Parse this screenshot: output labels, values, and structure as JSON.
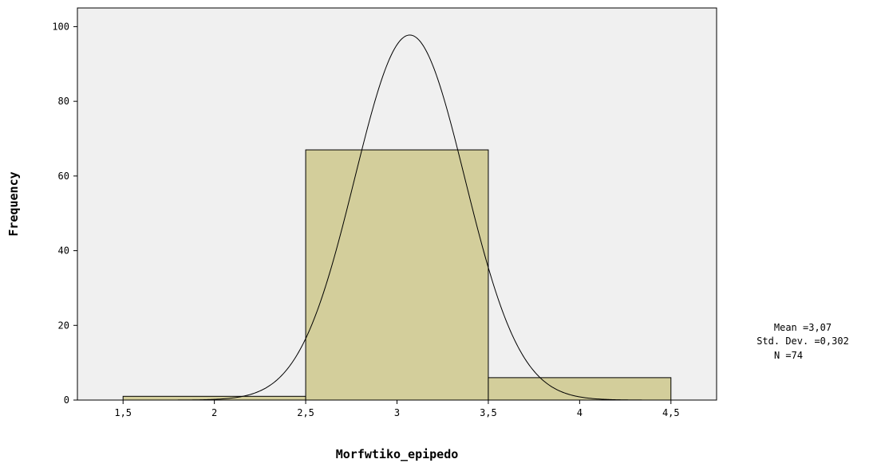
{
  "chart_data": {
    "type": "bar",
    "subtype": "histogram",
    "xlabel": "Morfwtiko_epipedo",
    "ylabel": "Frequency",
    "xlim": [
      1.25,
      4.75
    ],
    "ylim": [
      0,
      105
    ],
    "x_ticks": [
      {
        "value": 1.5,
        "label": "1,5"
      },
      {
        "value": 2,
        "label": "2"
      },
      {
        "value": 2.5,
        "label": "2,5"
      },
      {
        "value": 3,
        "label": "3"
      },
      {
        "value": 3.5,
        "label": "3,5"
      },
      {
        "value": 4,
        "label": "4"
      },
      {
        "value": 4.5,
        "label": "4,5"
      }
    ],
    "y_ticks": [
      {
        "value": 0,
        "label": "0"
      },
      {
        "value": 20,
        "label": "20"
      },
      {
        "value": 40,
        "label": "40"
      },
      {
        "value": 60,
        "label": "60"
      },
      {
        "value": 80,
        "label": "80"
      },
      {
        "value": 100,
        "label": "100"
      }
    ],
    "bins": [
      {
        "start": 1.5,
        "end": 2.5,
        "count": 1
      },
      {
        "start": 2.5,
        "end": 3.5,
        "count": 67
      },
      {
        "start": 3.5,
        "end": 4.5,
        "count": 6
      }
    ],
    "normal_curve": {
      "mean": 3.07,
      "std_dev": 0.302,
      "n": 74,
      "bin_width": 1.0
    },
    "grid": false,
    "colors": {
      "plot_background": "#f0f0f0",
      "bar_fill": "#d3ce9b",
      "bar_stroke": "#000000",
      "curve": "#000000"
    },
    "stats": {
      "mean_line": "Mean =3,07",
      "std_line": "Std. Dev. =0,302",
      "n_line": "N =74"
    }
  }
}
